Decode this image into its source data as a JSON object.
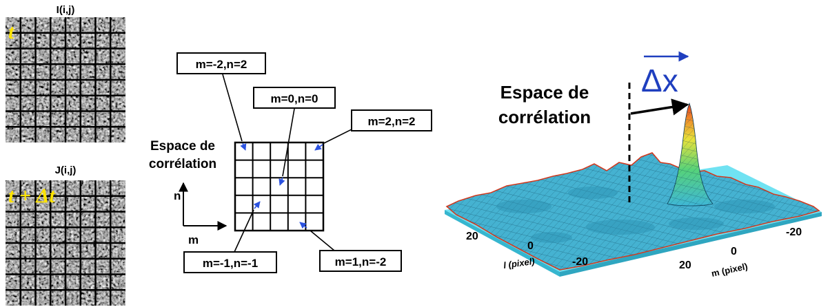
{
  "images": {
    "frame1": {
      "title": "I(i,j)",
      "time_label": "t"
    },
    "frame2": {
      "title": "J(i,j)",
      "time_label": "t + Δt"
    }
  },
  "grid": {
    "title_line1": "Espace de",
    "title_line2": "corrélation",
    "axis_vertical": "n",
    "axis_horizontal": "m",
    "callouts": [
      "m=-2,n=2",
      "m=0,n=0",
      "m=2,n=2",
      "m=-1,n=-1",
      "m=1,n=-2"
    ]
  },
  "surface": {
    "title_line1": "Espace de",
    "title_line2": "corrélation",
    "vector_label": "Δx",
    "axis_l_ticks": [
      "20",
      "0",
      "-20"
    ],
    "axis_l_label": "l (pixel)",
    "axis_m_ticks": [
      "0",
      "-20",
      "20"
    ],
    "axis_m_label": "m (pixel)"
  },
  "colors": {
    "text_yellow": "#ffe400",
    "vector_blue": "#1f3fbf",
    "arrow_blue": "#2b52e0",
    "surface_cyan": "#4fb8d8"
  }
}
